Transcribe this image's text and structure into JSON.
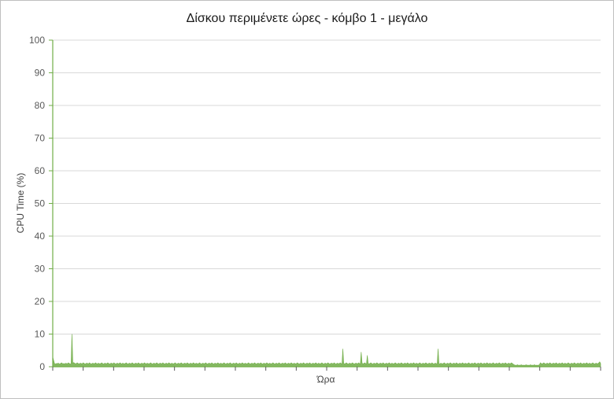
{
  "chart_data": {
    "type": "area",
    "title": "Δίσκου περιμένετε ώρες - κόμβο 1 - μεγάλο",
    "xlabel": "Ώρα",
    "ylabel": "CPU Time (%)",
    "ylim": [
      0,
      100
    ],
    "yticks": [
      "0",
      "10",
      "20",
      "30",
      "40",
      "50",
      "60",
      "70",
      "80",
      "90",
      "100"
    ],
    "grid": true,
    "legend": "none",
    "x_tick_count": 18,
    "series": [
      {
        "color": "#70ad47",
        "values": [
          3.0,
          2.0,
          1.0,
          0.8,
          1.0,
          0.9,
          1.1,
          1.0,
          0.8,
          1.0,
          1.2,
          1.0,
          0.9,
          1.0,
          0.8,
          1.1,
          0.9,
          1.0,
          1.2,
          1.0,
          0.8,
          1.0,
          10.0,
          1.0,
          1.3,
          1.1,
          0.9,
          1.0,
          1.2,
          1.0,
          0.9,
          1.0,
          1.1,
          0.9,
          1.0,
          1.2,
          1.0,
          0.8,
          1.0,
          1.1,
          1.0,
          0.9,
          1.2,
          1.0,
          0.8,
          1.0,
          1.1,
          0.9,
          1.0,
          1.2,
          1.0,
          0.8,
          1.1,
          1.0,
          0.9,
          1.0,
          1.2,
          1.0,
          0.8,
          1.0,
          1.1,
          0.9,
          1.0,
          1.2,
          1.0,
          0.8,
          1.0,
          1.1,
          1.0,
          0.9,
          1.2,
          1.0,
          0.8,
          1.0,
          1.1,
          0.9,
          1.0,
          1.2,
          1.0,
          0.8,
          1.1,
          1.0,
          0.9,
          1.0,
          1.2,
          1.0,
          0.8,
          1.0,
          1.1,
          0.9,
          1.0,
          1.2,
          1.0,
          0.8,
          1.0,
          1.1,
          1.0,
          0.9,
          1.2,
          1.0,
          0.8,
          1.0,
          1.1,
          0.9,
          1.0,
          1.2,
          1.0,
          0.8,
          1.1,
          1.0,
          0.9,
          1.0,
          1.2,
          1.0,
          0.8,
          1.0,
          1.1,
          0.9,
          1.0,
          1.2,
          1.0,
          0.8,
          1.0,
          1.1,
          1.0,
          0.9,
          1.2,
          1.0,
          0.8,
          1.0,
          1.1,
          0.9,
          1.0,
          1.2,
          1.0,
          0.8,
          1.1,
          1.0,
          0.9,
          1.0,
          1.2,
          1.0,
          0.8,
          1.0,
          1.1,
          0.9,
          1.0,
          1.2,
          1.0,
          0.8,
          1.0,
          1.1,
          1.0,
          0.9,
          1.2,
          1.0,
          0.8,
          1.0,
          1.1,
          0.9,
          1.0,
          1.2,
          1.0,
          0.8,
          1.1,
          1.0,
          0.9,
          1.0,
          1.2,
          1.0,
          0.8,
          1.0,
          1.1,
          0.9,
          1.0,
          1.2,
          1.0,
          0.8,
          1.0,
          1.1,
          1.0,
          0.9,
          1.2,
          1.0,
          0.8,
          1.0,
          1.1,
          0.9,
          1.0,
          1.2,
          1.0,
          0.8,
          1.1,
          1.0,
          0.9,
          1.0,
          1.2,
          1.0,
          0.8,
          1.0,
          1.1,
          0.9,
          1.0,
          1.2,
          1.0,
          0.8,
          1.0,
          1.1,
          1.0,
          0.9,
          1.2,
          1.0,
          0.8,
          1.0,
          1.1,
          0.9,
          1.0,
          1.2,
          1.0,
          0.8,
          1.1,
          1.0,
          0.9,
          1.0,
          1.2,
          1.0,
          0.8,
          1.0,
          1.1,
          0.9,
          1.0,
          1.2,
          1.0,
          0.8,
          1.0,
          1.1,
          1.0,
          0.9,
          1.2,
          1.0,
          0.8,
          1.0,
          1.1,
          0.9,
          1.0,
          1.2,
          1.0,
          0.8,
          1.1,
          1.0,
          0.9,
          1.0,
          1.2,
          1.0,
          0.8,
          1.0,
          1.1,
          0.9,
          1.0,
          1.2,
          1.0,
          0.8,
          1.0,
          1.1,
          1.0,
          0.9,
          1.2,
          1.0,
          0.8,
          1.0,
          1.1,
          0.9,
          1.0,
          1.2,
          1.0,
          0.8,
          1.1,
          1.0,
          0.9,
          1.0,
          1.2,
          1.0,
          0.8,
          1.0,
          1.1,
          0.9,
          1.0,
          1.2,
          1.0,
          0.8,
          1.0,
          1.1,
          1.0,
          0.9,
          1.2,
          1.0,
          0.8,
          1.0,
          1.1,
          0.9,
          1.0,
          1.2,
          1.0,
          0.8,
          1.1,
          1.0,
          0.9,
          1.0,
          1.2,
          1.0,
          0.8,
          1.0,
          1.1,
          0.9,
          1.0,
          1.2,
          1.0,
          0.8,
          1.0,
          1.1,
          1.0,
          0.9,
          1.2,
          1.0,
          0.8,
          1.0,
          1.1,
          0.9,
          1.0,
          1.2,
          1.0,
          0.8,
          5.5,
          1.0,
          0.9,
          1.0,
          1.2,
          1.0,
          0.8,
          1.0,
          1.1,
          0.9,
          1.0,
          1.2,
          1.0,
          0.8,
          1.0,
          1.1,
          1.0,
          0.9,
          1.2,
          1.0,
          0.8,
          4.5,
          1.1,
          0.9,
          1.0,
          1.2,
          1.0,
          0.8,
          3.5,
          1.0,
          0.9,
          1.0,
          1.2,
          1.0,
          0.8,
          1.0,
          1.1,
          0.9,
          1.0,
          1.2,
          1.0,
          0.8,
          1.0,
          1.1,
          1.0,
          0.9,
          1.2,
          1.0,
          0.8,
          1.0,
          1.1,
          0.9,
          1.0,
          1.2,
          1.0,
          0.8,
          1.1,
          1.0,
          0.9,
          1.0,
          1.2,
          1.0,
          0.8,
          1.0,
          1.1,
          0.9,
          1.0,
          1.2,
          1.0,
          0.8,
          1.0,
          1.1,
          1.0,
          0.9,
          1.2,
          1.0,
          0.8,
          1.0,
          1.1,
          0.9,
          1.0,
          1.2,
          1.0,
          0.8,
          1.1,
          1.0,
          0.9,
          1.0,
          1.2,
          1.0,
          0.8,
          1.0,
          1.1,
          0.9,
          1.0,
          1.2,
          1.0,
          0.8,
          1.0,
          1.1,
          1.0,
          0.9,
          1.2,
          1.0,
          0.8,
          1.0,
          1.1,
          0.9,
          1.0,
          5.5,
          1.0,
          0.8,
          1.1,
          1.0,
          0.9,
          1.0,
          1.2,
          1.0,
          0.8,
          1.0,
          1.1,
          0.9,
          1.0,
          1.2,
          1.0,
          0.8,
          1.0,
          1.1,
          1.0,
          0.9,
          1.2,
          1.0,
          0.8,
          1.0,
          1.1,
          0.9,
          1.0,
          1.2,
          1.0,
          0.8,
          1.1,
          1.0,
          0.9,
          1.0,
          1.2,
          1.0,
          0.8,
          1.0,
          1.1,
          0.9,
          1.0,
          1.2,
          1.0,
          0.8,
          1.0,
          1.1,
          1.0,
          0.9,
          1.2,
          1.0,
          0.8,
          1.0,
          1.1,
          0.9,
          1.0,
          1.2,
          1.0,
          0.8,
          1.1,
          1.0,
          0.9,
          1.0,
          1.2,
          1.0,
          0.8,
          1.0,
          1.1,
          0.9,
          1.0,
          1.2,
          1.0,
          0.8,
          1.0,
          1.1,
          1.0,
          0.9,
          1.2,
          1.0,
          0.8,
          1.0,
          1.1,
          0.9,
          1.0,
          1.2,
          1.0,
          0.8,
          0.6,
          0.5,
          0.4,
          0.5,
          0.6,
          0.4,
          0.5,
          0.4,
          0.6,
          0.5,
          0.4,
          0.5,
          0.4,
          0.5,
          0.6,
          0.4,
          0.5,
          0.4,
          0.5,
          0.6,
          0.4,
          0.5,
          0.4,
          0.6,
          0.5,
          0.4,
          0.5,
          0.4,
          0.5,
          0.6,
          1.2,
          1.0,
          0.9,
          1.0,
          1.2,
          1.0,
          0.8,
          1.0,
          1.1,
          0.9,
          1.0,
          1.2,
          1.0,
          0.8,
          1.0,
          1.1,
          1.0,
          0.9,
          1.2,
          1.0,
          0.8,
          1.0,
          1.1,
          0.9,
          1.0,
          1.2,
          1.0,
          0.8,
          1.1,
          1.0,
          0.9,
          1.0,
          1.2,
          1.0,
          0.8,
          1.0,
          1.1,
          0.9,
          1.0,
          1.2,
          1.0,
          0.8,
          1.0,
          1.1,
          1.0,
          0.9,
          1.2,
          1.0,
          0.8,
          1.0,
          1.1,
          0.9,
          1.0,
          1.2,
          1.0,
          0.8,
          1.1,
          1.0,
          0.9,
          1.0,
          1.2,
          1.0,
          0.8,
          1.0,
          1.1,
          0.9,
          1.0,
          1.2,
          1.5,
          1.0
        ]
      }
    ]
  },
  "colors": {
    "series": "#70ad47",
    "axis": "#70ad47",
    "grid": "#d9d9d9",
    "tick_text": "#595959"
  }
}
